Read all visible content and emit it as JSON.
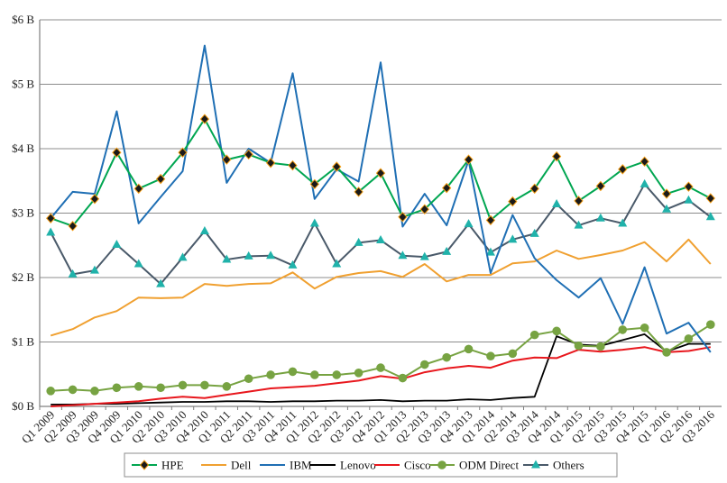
{
  "chart_data": {
    "type": "line",
    "title": "",
    "xlabel": "",
    "ylabel": "",
    "ylim": [
      0,
      6
    ],
    "y_unit": "B",
    "y_prefix": "$",
    "yticks": [
      "$0 B",
      "$1 B",
      "$2 B",
      "$3 B",
      "$4 B",
      "$5 B",
      "$6 B"
    ],
    "grid": "horizontal",
    "legend_position": "bottom",
    "categories": [
      "Q1 2009",
      "Q2 2009",
      "Q3 2009",
      "Q4 2009",
      "Q1 2010",
      "Q2 2010",
      "Q3 2010",
      "Q4 2010",
      "Q1 2011",
      "Q2 2011",
      "Q3 2011",
      "Q4 2011",
      "Q1 2012",
      "Q2 2012",
      "Q3 2012",
      "Q4 2012",
      "Q1 2013",
      "Q2 2013",
      "Q3 2013",
      "Q4 2013",
      "Q1 2014",
      "Q2 2014",
      "Q3 2014",
      "Q4 2014",
      "Q1 2015",
      "Q2 2015",
      "Q3 2015",
      "Q4 2015",
      "Q1 2016",
      "Q2 2016",
      "Q3 2016"
    ],
    "series": [
      {
        "name": "HPE",
        "color": "#00a651",
        "marker": "diamond",
        "marker_color": "#1a1a1a",
        "marker_edge": "#f39c12",
        "values": [
          2.92,
          2.8,
          3.22,
          3.94,
          3.38,
          3.53,
          3.94,
          4.46,
          3.83,
          3.91,
          3.78,
          3.74,
          3.45,
          3.72,
          3.33,
          3.62,
          2.94,
          3.06,
          3.39,
          3.83,
          2.89,
          3.18,
          3.38,
          3.88,
          3.19,
          3.42,
          3.68,
          3.8,
          3.3,
          3.41,
          3.23
        ]
      },
      {
        "name": "Dell",
        "color": "#f0a030",
        "marker": "none",
        "values": [
          1.1,
          1.2,
          1.38,
          1.48,
          1.69,
          1.68,
          1.69,
          1.9,
          1.87,
          1.9,
          1.91,
          2.08,
          1.83,
          2.01,
          2.07,
          2.1,
          2.01,
          2.21,
          1.94,
          2.04,
          2.04,
          2.22,
          2.25,
          2.42,
          2.29,
          2.35,
          2.42,
          2.55,
          2.25,
          2.59,
          2.21
        ]
      },
      {
        "name": "IBM",
        "color": "#1f6fb4",
        "marker": "none",
        "values": [
          2.92,
          3.33,
          3.3,
          4.58,
          2.84,
          3.25,
          3.65,
          5.6,
          3.47,
          4.0,
          3.78,
          5.17,
          3.22,
          3.68,
          3.49,
          5.34,
          2.79,
          3.3,
          2.81,
          3.82,
          2.07,
          2.97,
          2.3,
          1.96,
          1.69,
          1.99,
          1.28,
          2.16,
          1.13,
          1.3,
          0.84
        ]
      },
      {
        "name": "Lenovo",
        "color": "#000000",
        "marker": "none",
        "values": [
          0.03,
          0.03,
          0.04,
          0.04,
          0.05,
          0.06,
          0.07,
          0.07,
          0.08,
          0.08,
          0.07,
          0.08,
          0.08,
          0.09,
          0.09,
          0.1,
          0.08,
          0.09,
          0.09,
          0.11,
          0.1,
          0.13,
          0.15,
          1.09,
          0.96,
          0.94,
          1.03,
          1.12,
          0.85,
          0.97,
          0.97
        ]
      },
      {
        "name": "Cisco",
        "color": "#e8171d",
        "marker": "none",
        "values": [
          0.0,
          0.02,
          0.04,
          0.06,
          0.08,
          0.12,
          0.15,
          0.13,
          0.18,
          0.23,
          0.28,
          0.3,
          0.32,
          0.36,
          0.4,
          0.47,
          0.43,
          0.53,
          0.59,
          0.63,
          0.6,
          0.71,
          0.76,
          0.75,
          0.88,
          0.85,
          0.88,
          0.92,
          0.84,
          0.86,
          0.92
        ]
      },
      {
        "name": "ODM Direct",
        "color": "#77a342",
        "marker": "circle",
        "values": [
          0.24,
          0.26,
          0.24,
          0.29,
          0.31,
          0.29,
          0.33,
          0.33,
          0.31,
          0.43,
          0.49,
          0.54,
          0.49,
          0.49,
          0.52,
          0.6,
          0.44,
          0.65,
          0.76,
          0.89,
          0.78,
          0.82,
          1.11,
          1.17,
          0.94,
          0.93,
          1.19,
          1.22,
          0.84,
          1.05,
          1.27
        ]
      },
      {
        "name": "Others",
        "color": "#4a5a6a",
        "marker": "triangle",
        "marker_color": "#20b2aa",
        "values": [
          2.7,
          2.05,
          2.11,
          2.51,
          2.21,
          1.9,
          2.31,
          2.72,
          2.28,
          2.33,
          2.34,
          2.19,
          2.84,
          2.21,
          2.54,
          2.58,
          2.34,
          2.32,
          2.4,
          2.83,
          2.39,
          2.59,
          2.68,
          3.14,
          2.81,
          2.92,
          2.84,
          3.45,
          3.06,
          3.2,
          2.94
        ]
      }
    ]
  }
}
